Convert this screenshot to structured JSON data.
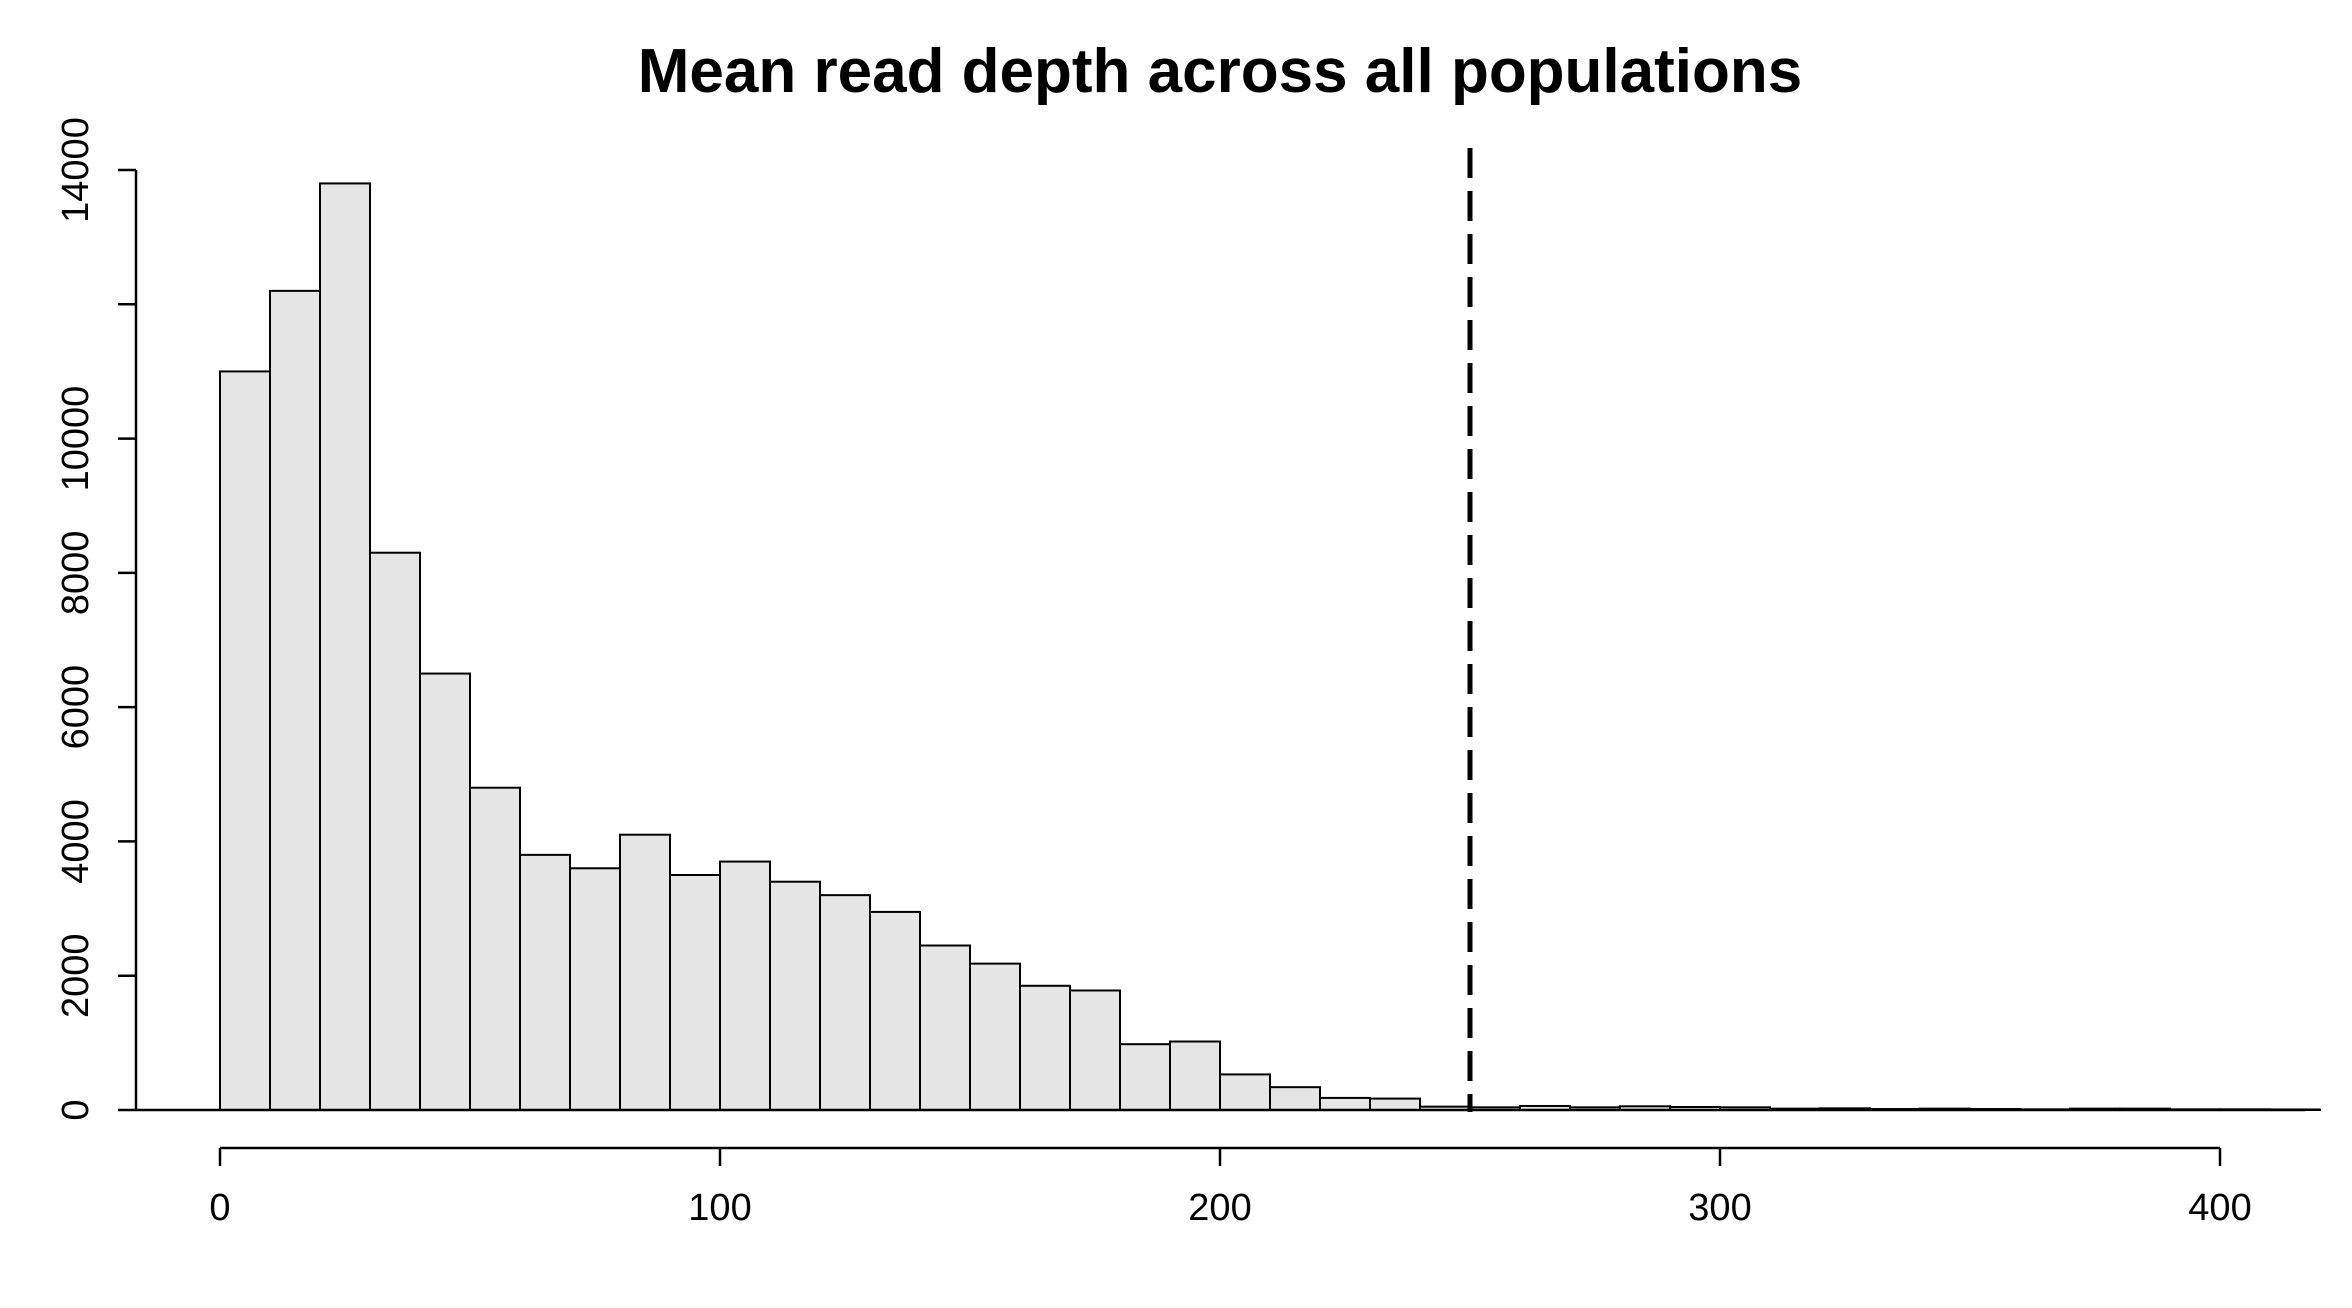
{
  "chart_data": {
    "type": "bar",
    "title": "Mean read depth across all populations",
    "xlabel": "",
    "ylabel": "",
    "bin_width": 10,
    "bin_start": 0,
    "values": [
      11000,
      12200,
      13800,
      8300,
      6500,
      4800,
      3800,
      3600,
      4100,
      3500,
      3700,
      3400,
      3200,
      2950,
      2450,
      2180,
      1850,
      1780,
      980,
      1020,
      530,
      340,
      180,
      170,
      50,
      40,
      60,
      40,
      55,
      45,
      40,
      20,
      25,
      15,
      20,
      15,
      10,
      20,
      20,
      10,
      10,
      8
    ],
    "xlim": [
      0,
      415
    ],
    "ylim": [
      0,
      14000
    ],
    "x_ticks": [
      0,
      100,
      200,
      300,
      400
    ],
    "x_tick_labels": [
      "0",
      "100",
      "200",
      "300",
      "400"
    ],
    "y_ticks": [
      0,
      2000,
      4000,
      6000,
      8000,
      10000,
      12000,
      14000
    ],
    "y_tick_labels": [
      "0",
      "2000",
      "4000",
      "6000",
      "8000",
      "10000",
      "",
      "14000"
    ],
    "reference_line": {
      "x": 250,
      "style": "dashed"
    },
    "grid": false,
    "bar_fill": "#e5e5e5",
    "bar_stroke": "#000000"
  }
}
